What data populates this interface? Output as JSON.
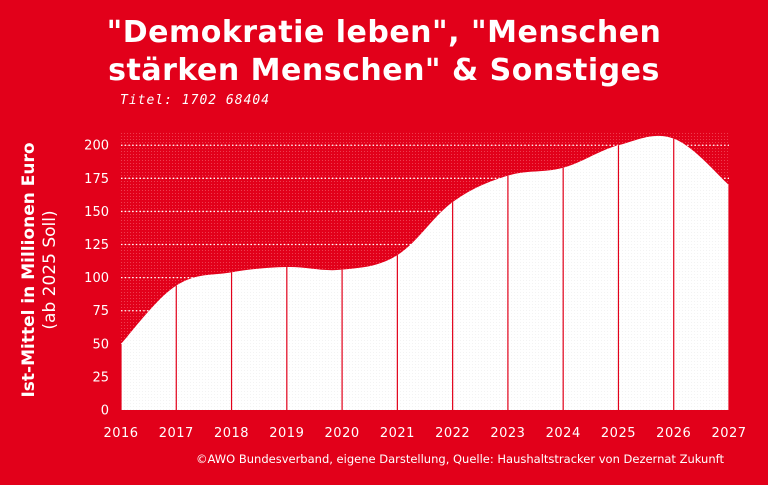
{
  "title_lines": [
    "\"Demokratie leben\", \"Menschen",
    "stärken Menschen\" & Sonstiges"
  ],
  "subtitle": "Titel: 1702 68404",
  "source": "©AWO Bundesverband, eigene Darstellung, Quelle: Haushaltstracker von Dezernat Zukunft",
  "colors": {
    "background": "#e2001a",
    "area": "#ffffff",
    "divider": "#e2001a",
    "grid": "#ffffff"
  },
  "chart_data": {
    "type": "area",
    "x": [
      "2016",
      "2017",
      "2018",
      "2019",
      "2020",
      "2021",
      "2022",
      "2023",
      "2024",
      "2025",
      "2026",
      "2027"
    ],
    "values": [
      50,
      94,
      104,
      108,
      106,
      117,
      157,
      177,
      183,
      200,
      205,
      170
    ],
    "ylabel_lines": [
      "Ist-Mittel in Millionen Euro",
      "(ab 2025 Soll)"
    ],
    "yticks": [
      0,
      25,
      50,
      75,
      100,
      125,
      150,
      175,
      200
    ],
    "ylim": [
      0,
      210
    ],
    "grid": true,
    "legend": "none"
  }
}
